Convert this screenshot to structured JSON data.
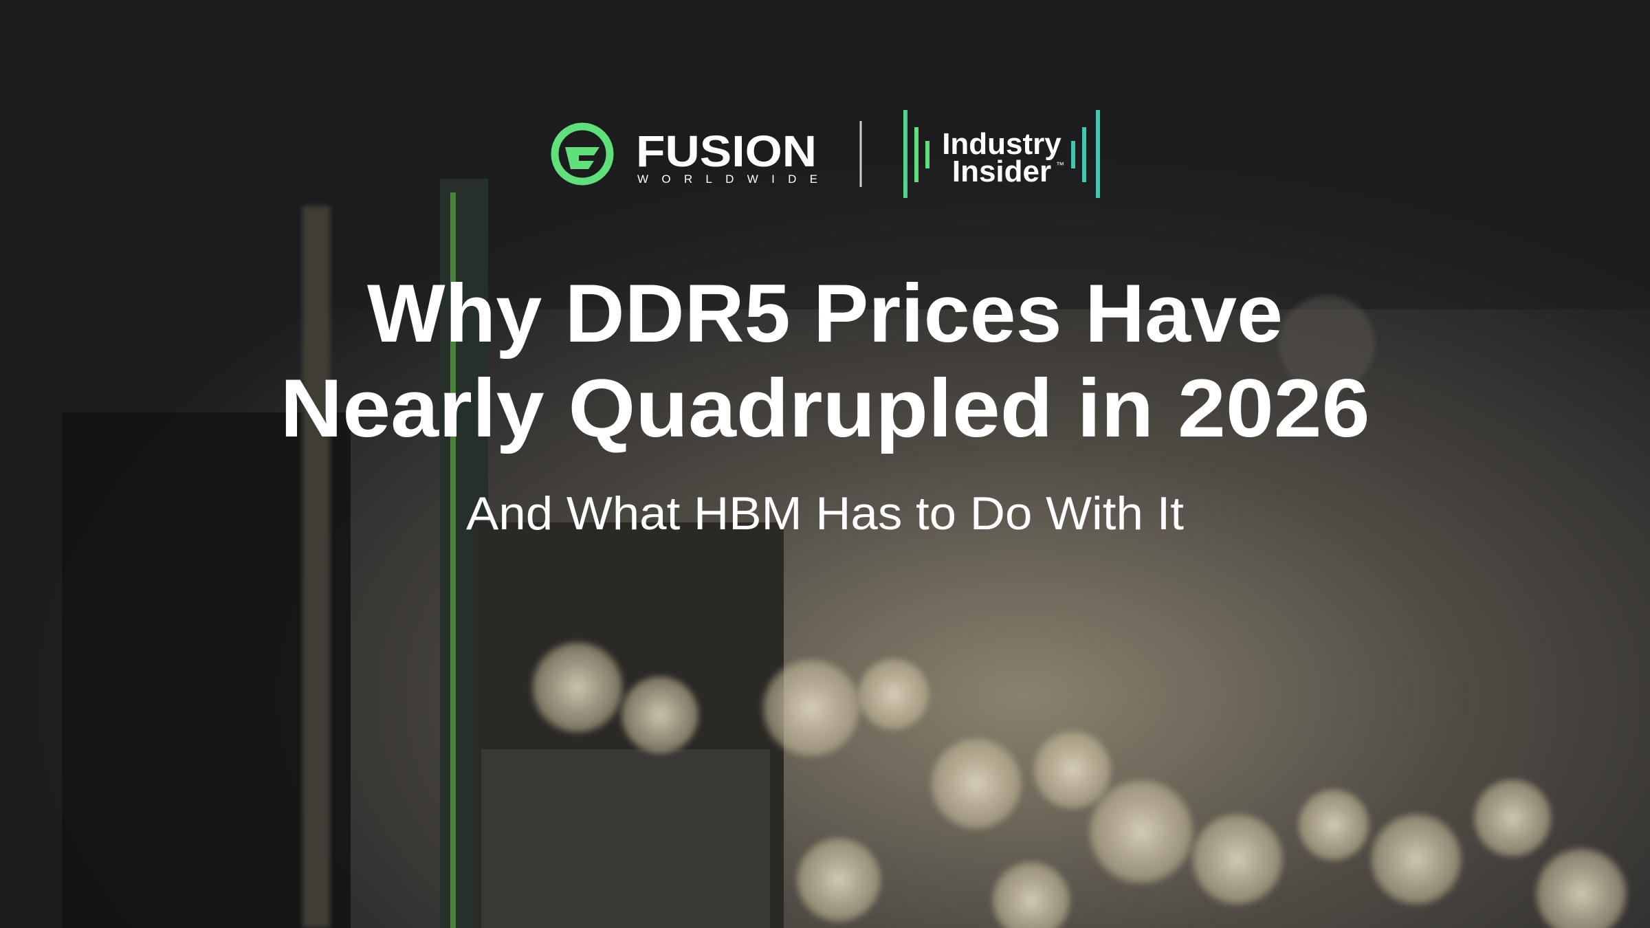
{
  "logos": {
    "fusion": {
      "name": "FUSION",
      "tagline": "WORLDWIDE"
    },
    "industry_insider": {
      "line1": "Industry",
      "line2": "Insider",
      "mark": "™"
    }
  },
  "headline": {
    "line1": "Why DDR5 Prices Have",
    "line2": "Nearly Quadrupled in 2026"
  },
  "subtitle": "And What HBM Has to Do With It"
}
